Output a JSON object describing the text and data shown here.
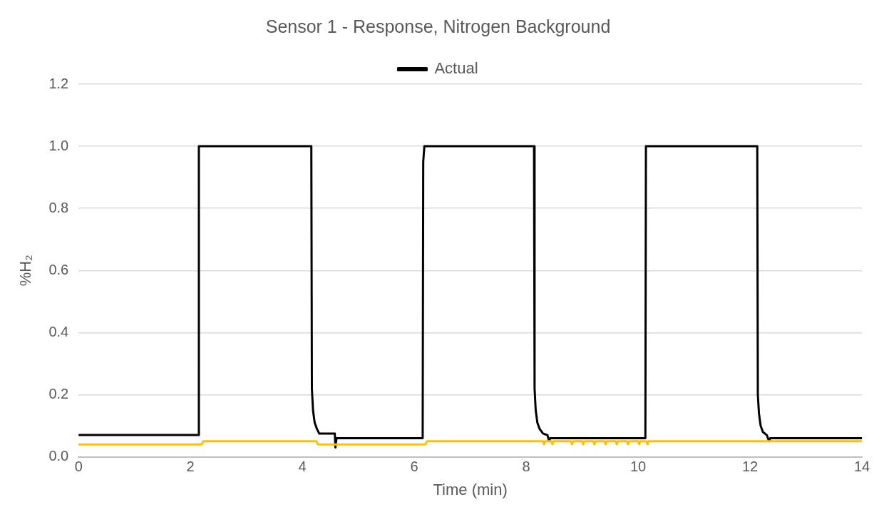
{
  "chart_data": {
    "type": "line",
    "title": "Sensor 1 - Response, Nitrogen Background",
    "xlabel": "Time (min)",
    "ylabel": "%H₂",
    "xlim": [
      0,
      14
    ],
    "xticks": [
      0,
      2,
      4,
      6,
      8,
      10,
      12,
      14
    ],
    "ylim": [
      0,
      1.2
    ],
    "yticks": [
      {
        "value": 0,
        "label": "0.0"
      },
      {
        "value": 0.2,
        "label": "0.2"
      },
      {
        "value": 0.4,
        "label": "0.4"
      },
      {
        "value": 0.6,
        "label": "0.6"
      },
      {
        "value": 0.8,
        "label": "0.8"
      },
      {
        "value": 1,
        "label": "1.0"
      },
      {
        "value": 1.2,
        "label": "1.2"
      }
    ],
    "grid": "y",
    "legend": "top",
    "marker": "none",
    "line_style": "solid",
    "series": [
      {
        "color": "#ffc000",
        "x": [
          0,
          2.2,
          2.23,
          4.25,
          4.28,
          6.2,
          6.23,
          8.3,
          8.32,
          8.34,
          8.45,
          8.47,
          8.49,
          8.8,
          8.82,
          8.84,
          9.0,
          9.02,
          9.04,
          9.2,
          9.22,
          9.24,
          9.4,
          9.42,
          9.44,
          9.6,
          9.62,
          9.64,
          9.8,
          9.82,
          9.84,
          10.0,
          10.02,
          10.04,
          10.15,
          10.17,
          10.19,
          14
        ],
        "values": [
          0.04,
          0.04,
          0.05,
          0.05,
          0.04,
          0.04,
          0.05,
          0.05,
          0.04,
          0.05,
          0.05,
          0.04,
          0.05,
          0.05,
          0.04,
          0.05,
          0.05,
          0.04,
          0.05,
          0.05,
          0.04,
          0.05,
          0.05,
          0.04,
          0.05,
          0.05,
          0.04,
          0.05,
          0.05,
          0.04,
          0.05,
          0.05,
          0.04,
          0.05,
          0.05,
          0.04,
          0.05,
          0.05
        ]
      },
      {
        "name": "Actual",
        "color": "#000000",
        "x": [
          0,
          2.14,
          2.15,
          4.16,
          4.17,
          4.19,
          4.22,
          4.26,
          4.3,
          4.58,
          4.59,
          4.61,
          6.15,
          6.16,
          6.18,
          8.14,
          8.15,
          8.17,
          8.2,
          8.24,
          8.3,
          8.38,
          8.41,
          8.43,
          10.13,
          10.14,
          12.13,
          12.14,
          12.16,
          12.19,
          12.23,
          12.3,
          12.34,
          12.36,
          14
        ],
        "values": [
          0.07,
          0.07,
          1.0,
          1.0,
          0.22,
          0.15,
          0.11,
          0.09,
          0.075,
          0.075,
          0.03,
          0.06,
          0.06,
          0.95,
          1.0,
          1.0,
          0.22,
          0.15,
          0.11,
          0.09,
          0.075,
          0.07,
          0.05,
          0.06,
          0.06,
          1.0,
          1.0,
          0.2,
          0.14,
          0.1,
          0.08,
          0.07,
          0.05,
          0.06,
          0.06
        ]
      }
    ]
  }
}
